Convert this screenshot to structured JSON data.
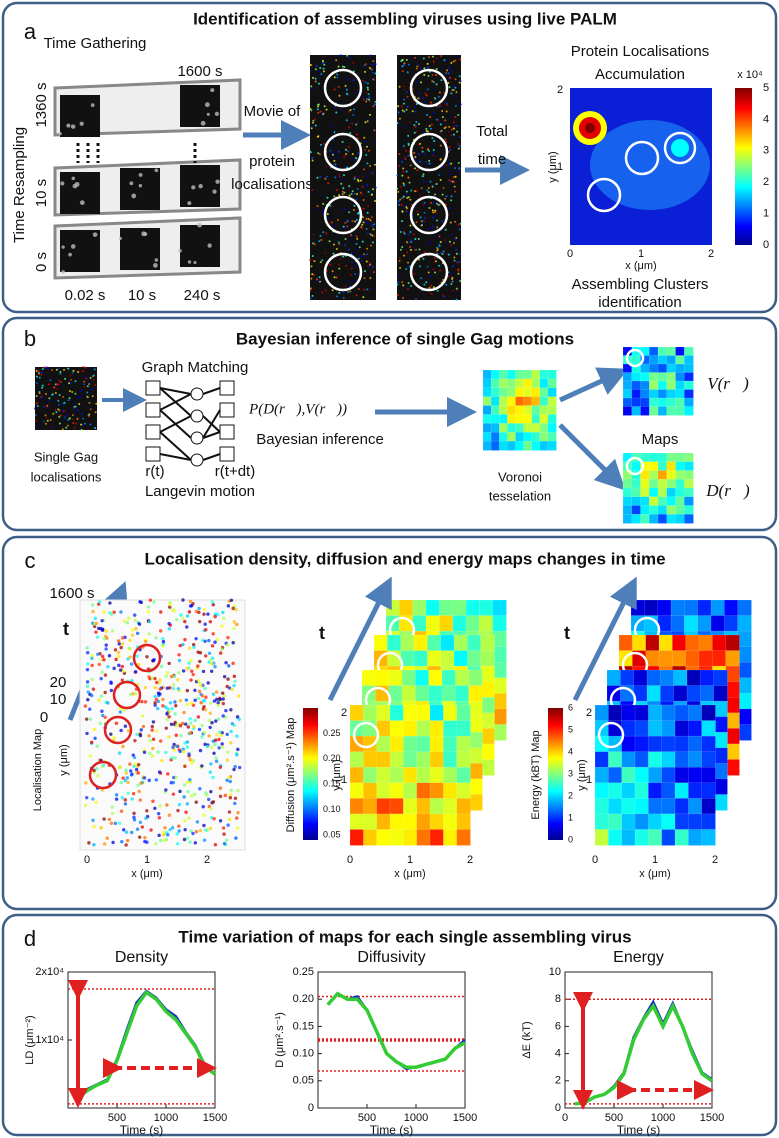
{
  "panel_a": {
    "label": "a",
    "title": "Identification of assembling viruses using live PALM",
    "time_gathering": "Time Gathering",
    "time_resampling": "Time Resampling",
    "frame_times": [
      "1600 s",
      "1360 s",
      "10 s",
      "0 s"
    ],
    "bottom_times": [
      "0.02 s",
      "10 s",
      "240 s"
    ],
    "movie_label": [
      "Movie of",
      "protein",
      "localisations"
    ],
    "total_time": [
      "Total",
      "time"
    ],
    "map_title": [
      "Protein Localisations",
      "Accumulation"
    ],
    "map_caption": [
      "Assembling Clusters",
      "identification"
    ],
    "x_label": "x (μm)",
    "y_label": "y (μm)",
    "x_ticks": [
      "0",
      "1",
      "2"
    ],
    "y_ticks": [
      "1",
      "2"
    ],
    "colorbar_exponent": "x 10⁴",
    "colorbar_ticks": [
      "0",
      "1",
      "2",
      "3",
      "4",
      "5"
    ]
  },
  "panel_b": {
    "label": "b",
    "title": "Bayesian inference of single Gag motions",
    "image_caption": [
      "Single Gag",
      "localisations"
    ],
    "graph_matching": "Graph Matching",
    "r_t": "r(t)",
    "r_t_dt": "r(t+dt)",
    "langevin": "Langevin motion",
    "posterior": "P(D(r⃗),V(r⃗))",
    "bayesian": "Bayesian inference",
    "voronoi": [
      "Voronoi",
      "tesselation"
    ],
    "maps": "Maps",
    "v_map": "V(r⃗)",
    "d_map": "D(r⃗)"
  },
  "panel_c": {
    "label": "c",
    "title": "Localisation density, diffusion and energy maps changes in time",
    "time_top": "1600 s",
    "time_axis": "t",
    "time_steps": [
      "20",
      "10",
      "0"
    ],
    "loc_map_label": "Localisation Map",
    "y_label": "y (μm)",
    "x_label": "x (μm)",
    "map_x_ticks": [
      "0",
      "1",
      "2"
    ],
    "map_y_ticks": [
      "1",
      "2"
    ],
    "diffusion_label": "Diffusion (μm².s⁻¹) Map",
    "diffusion_ticks": [
      "0.05",
      "0.10",
      "0.15",
      "0.20",
      "0.25"
    ],
    "energy_label": "Energy (kBT) Map",
    "energy_ticks": [
      "0",
      "1",
      "2",
      "3",
      "4",
      "5",
      "6"
    ]
  },
  "panel_d": {
    "label": "d",
    "title": "Time variation of maps for each single assembling virus",
    "charts": [
      {
        "type": "line",
        "title": "Density",
        "xlabel": "Time (s)",
        "ylabel": "LD (μm⁻²)",
        "xlim": [
          0,
          1500
        ],
        "xticks": [
          500,
          1000,
          1500
        ],
        "ylim": [
          0,
          20000
        ],
        "yticks": [
          {
            "value": 10000,
            "label": "1x10⁴"
          },
          {
            "value": 20000,
            "label": "2x10⁴"
          }
        ],
        "x": [
          100,
          200,
          300,
          400,
          500,
          600,
          700,
          800,
          900,
          1000,
          1100,
          1200,
          1300,
          1400,
          1500
        ],
        "series": [
          {
            "color": "#1a2fbf",
            "values": [
              1500,
              2800,
              3500,
              4200,
              7200,
              11500,
              15500,
              17200,
              16200,
              14500,
              13500,
              11200,
              9200,
              6200,
              5000
            ]
          },
          {
            "color": "#33cc33",
            "values": [
              1500,
              2600,
              3400,
              4000,
              7000,
              11000,
              15000,
              17000,
              16000,
              14200,
              13000,
              11000,
              9000,
              6000,
              5000
            ]
          }
        ],
        "reference_lines": [
          17500,
          600
        ],
        "reference_color": "#e02020"
      },
      {
        "type": "line",
        "title": "Diffusivity",
        "xlabel": "Time (s)",
        "ylabel": "D (μm².s⁻¹)",
        "xlim": [
          0,
          1500
        ],
        "xticks": [
          500,
          1000,
          1500
        ],
        "ylim": [
          0,
          0.25
        ],
        "yticks": [
          0,
          0.05,
          {
            "value": 0.1,
            "label": "0.10"
          },
          0.15,
          {
            "value": 0.2,
            "label": "0.20"
          },
          0.25
        ],
        "x": [
          100,
          200,
          300,
          400,
          500,
          600,
          700,
          800,
          900,
          1000,
          1100,
          1200,
          1300,
          1400,
          1500
        ],
        "series": [
          {
            "color": "#1a2fbf",
            "values": [
              0.19,
              0.21,
              0.2,
              0.205,
              0.18,
              0.14,
              0.1,
              0.085,
              0.072,
              0.075,
              0.08,
              0.085,
              0.09,
              0.11,
              0.125
            ]
          },
          {
            "color": "#33cc33",
            "values": [
              0.19,
              0.21,
              0.2,
              0.2,
              0.18,
              0.14,
              0.1,
              0.085,
              0.075,
              0.075,
              0.08,
              0.085,
              0.09,
              0.11,
              0.12
            ]
          }
        ],
        "reference_lines": [
          0.205,
          0.125,
          0.068
        ],
        "reference_color": "#e02020"
      },
      {
        "type": "line",
        "title": "Energy",
        "xlabel": "Time (s)",
        "ylabel": "ΔE (kT)",
        "xlim": [
          0,
          1500
        ],
        "xticks": [
          0,
          500,
          1000,
          1500
        ],
        "ylim": [
          0,
          10
        ],
        "yticks": [
          0,
          2,
          4,
          6,
          8,
          10
        ],
        "x": [
          100,
          200,
          300,
          400,
          500,
          600,
          700,
          800,
          900,
          1000,
          1100,
          1200,
          1300,
          1400,
          1500
        ],
        "series": [
          {
            "color": "#1a2fbf",
            "values": [
              0.3,
              0.4,
              0.8,
              1,
              1.6,
              2.6,
              5.2,
              6.6,
              7.8,
              6.2,
              7.7,
              6,
              4.2,
              2.6,
              2.1
            ]
          },
          {
            "color": "#33cc33",
            "values": [
              0.3,
              0.4,
              0.8,
              1,
              1.5,
              2.5,
              5,
              6.5,
              7.5,
              6,
              7.5,
              6,
              4,
              2.5,
              2
            ]
          }
        ],
        "reference_lines": [
          8,
          0.3
        ],
        "reference_color": "#e02020"
      }
    ]
  }
}
